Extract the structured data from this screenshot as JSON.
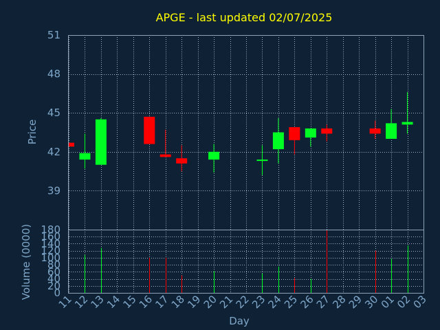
{
  "chart_data": [
    {
      "type": "candlestick",
      "title": "APGE - last updated 02/07/2025",
      "ylabel": "Price",
      "xlabel": "",
      "ylim": [
        36,
        51
      ],
      "yticks": [
        39,
        42,
        45,
        48,
        51
      ],
      "grid": true,
      "days": [
        "11",
        "12",
        "13",
        "14",
        "15",
        "16",
        "17",
        "18",
        "19",
        "20",
        "21",
        "22",
        "23",
        "24",
        "25",
        "26",
        "27",
        "28",
        "29",
        "30",
        "01",
        "02",
        "03"
      ],
      "candles": [
        {
          "day": "11",
          "open": 42.7,
          "close": 42.4,
          "high": 42.7,
          "low": 42.4
        },
        {
          "day": "12",
          "open": 41.4,
          "close": 41.9,
          "high": 43.4,
          "low": 40.7
        },
        {
          "day": "13",
          "open": 41.0,
          "close": 44.5,
          "high": 44.6,
          "low": 41.0
        },
        {
          "day": "16",
          "open": 44.7,
          "close": 42.6,
          "high": 44.7,
          "low": 42.6
        },
        {
          "day": "17",
          "open": 41.8,
          "close": 41.6,
          "high": 43.7,
          "low": 41.6
        },
        {
          "day": "18",
          "open": 41.5,
          "close": 41.1,
          "high": 42.5,
          "low": 40.5
        },
        {
          "day": "20",
          "open": 41.4,
          "close": 42.0,
          "high": 42.6,
          "low": 40.4
        },
        {
          "day": "23",
          "open": 41.3,
          "close": 41.4,
          "high": 42.5,
          "low": 40.2
        },
        {
          "day": "24",
          "open": 42.2,
          "close": 43.5,
          "high": 44.6,
          "low": 41.1
        },
        {
          "day": "25",
          "open": 43.9,
          "close": 42.9,
          "high": 43.9,
          "low": 41.8
        },
        {
          "day": "26",
          "open": 43.1,
          "close": 43.8,
          "high": 43.8,
          "low": 42.4
        },
        {
          "day": "27",
          "open": 43.8,
          "close": 43.4,
          "high": 44.1,
          "low": 42.8
        },
        {
          "day": "30",
          "open": 43.8,
          "close": 43.4,
          "high": 44.4,
          "low": 43.0
        },
        {
          "day": "01",
          "open": 43.0,
          "close": 44.2,
          "high": 45.3,
          "low": 43.0
        },
        {
          "day": "02",
          "open": 44.1,
          "close": 44.3,
          "high": 46.6,
          "low": 43.4
        }
      ]
    },
    {
      "type": "bar",
      "xlabel": "Day",
      "ylabel": "Volume (0000)",
      "ylim": [
        0,
        180
      ],
      "yticks": [
        0,
        20,
        40,
        60,
        80,
        100,
        120,
        140,
        160,
        180
      ],
      "grid": true,
      "bars": [
        {
          "day": "12",
          "value": 108,
          "direction": "up"
        },
        {
          "day": "13",
          "value": 128,
          "direction": "up"
        },
        {
          "day": "16",
          "value": 100,
          "direction": "down"
        },
        {
          "day": "17",
          "value": 100,
          "direction": "down"
        },
        {
          "day": "18",
          "value": 50,
          "direction": "down"
        },
        {
          "day": "20",
          "value": 62,
          "direction": "up"
        },
        {
          "day": "23",
          "value": 55,
          "direction": "up"
        },
        {
          "day": "24",
          "value": 75,
          "direction": "up"
        },
        {
          "day": "25",
          "value": 42,
          "direction": "down"
        },
        {
          "day": "26",
          "value": 40,
          "direction": "up"
        },
        {
          "day": "27",
          "value": 180,
          "direction": "down"
        },
        {
          "day": "30",
          "value": 120,
          "direction": "down"
        },
        {
          "day": "01",
          "value": 97,
          "direction": "up"
        },
        {
          "day": "02",
          "value": 135,
          "direction": "up"
        }
      ]
    }
  ],
  "colors": {
    "background": "#0f2135",
    "title": "#ffff00",
    "axis_text": "#7fa7c9",
    "frame": "#8da3b8",
    "grid": "#a0b0c0",
    "up": "#00ff22",
    "down": "#ff0000"
  }
}
